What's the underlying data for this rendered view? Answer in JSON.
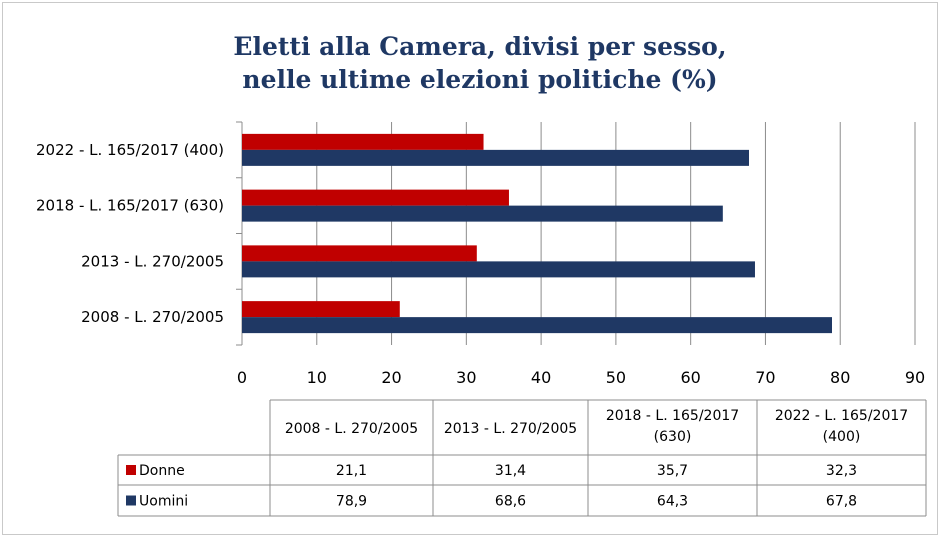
{
  "chart_data": {
    "type": "bar",
    "orientation": "horizontal",
    "title": [
      "Eletti alla Camera, divisi per sesso,",
      "nelle ultime elezioni politiche (%)"
    ],
    "categories": [
      "2008 - L. 270/2005",
      "2013 - L. 270/2005",
      "2018 - L. 165/2017 (630)",
      "2022 - L. 165/2017 (400)"
    ],
    "table_headers": [
      [
        "2008 - L. 270/2005"
      ],
      [
        "2013 - L. 270/2005"
      ],
      [
        "2018 - L. 165/2017",
        "(630)"
      ],
      [
        "2022 - L. 165/2017",
        "(400)"
      ]
    ],
    "series": [
      {
        "name": "Donne",
        "color": "#c00000",
        "values": [
          21.1,
          31.4,
          35.7,
          32.3
        ],
        "labels": [
          "21,1",
          "31,4",
          "35,7",
          "32,3"
        ]
      },
      {
        "name": "Uomini",
        "color": "#1f3864",
        "values": [
          78.9,
          68.6,
          64.3,
          67.8
        ],
        "labels": [
          "78,9",
          "68,6",
          "64,3",
          "67,8"
        ]
      }
    ],
    "xlim": [
      0,
      90
    ],
    "ticks": [
      0,
      10,
      20,
      30,
      40,
      50,
      60,
      70,
      80,
      90
    ],
    "grid": true,
    "legend": "data-table"
  }
}
